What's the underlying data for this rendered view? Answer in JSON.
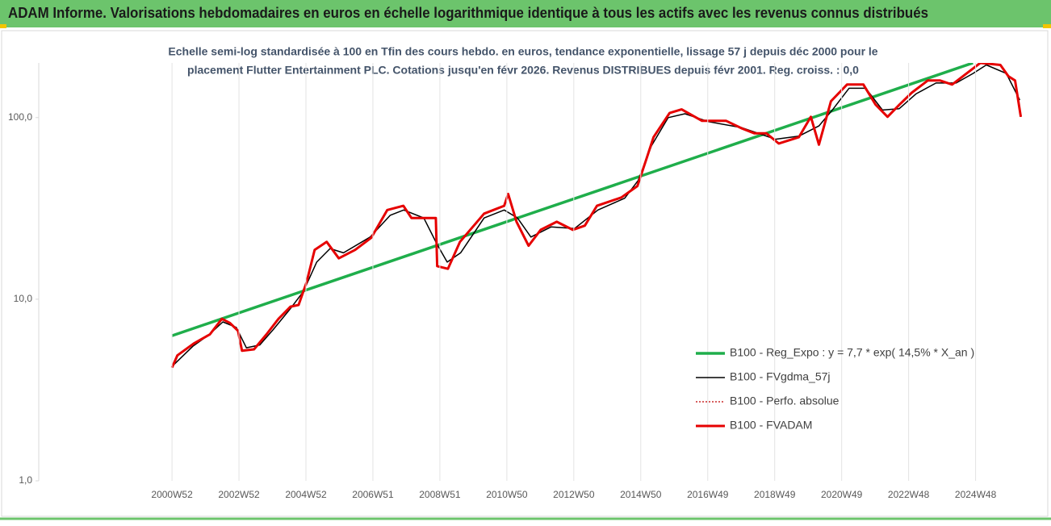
{
  "chart_data": {
    "type": "line",
    "title": "ADAM Informe. Valorisations hebdomadaires en euros en échelle logarithmique identique à tous les actifs avec les revenus connus distribués",
    "subtitle": [
      "Echelle semi-log standardisée à 100 en Tfin des cours hebdo. en euros, tendance exponentielle, lissage 57 j depuis déc 2000 pour le",
      "placement Flutter Entertainment PLC. Cotations jusqu'en févr 2026.  Revenus DISTRIBUES depuis févr 2001. Reg. croiss. : 0,0"
    ],
    "log_scale": true,
    "legend": "right",
    "xlim": [
      1997,
      2026.75
    ],
    "ylim": [
      1,
      200
    ],
    "yticks": [
      {
        "value": 1,
        "label": "1,0"
      },
      {
        "value": 10,
        "label": "10,0"
      },
      {
        "value": 100,
        "label": "100,0"
      }
    ],
    "xticks": [
      {
        "value": 2000.98,
        "label": "2000W52"
      },
      {
        "value": 2002.98,
        "label": "2002W52"
      },
      {
        "value": 2004.98,
        "label": "2004W52"
      },
      {
        "value": 2006.98,
        "label": "2006W51"
      },
      {
        "value": 2008.98,
        "label": "2008W51"
      },
      {
        "value": 2010.98,
        "label": "2010W50"
      },
      {
        "value": 2012.98,
        "label": "2012W50"
      },
      {
        "value": 2014.98,
        "label": "2014W50"
      },
      {
        "value": 2016.98,
        "label": "2016W49"
      },
      {
        "value": 2018.98,
        "label": "2018W49"
      },
      {
        "value": 2020.98,
        "label": "2020W49"
      },
      {
        "value": 2022.98,
        "label": "2022W48"
      },
      {
        "value": 2024.98,
        "label": "2024W48"
      }
    ],
    "series": [
      {
        "name": "B100 - Reg_Expo : y = 7,7 * exp( 14,5% *  X_an )",
        "color": "#1fae4b",
        "width": 3.5,
        "line_style": "solid",
        "x": [
          2000.98,
          2024.9
        ],
        "values": [
          6.3,
          200
        ]
      },
      {
        "name": "B100 - FVgdma_57j",
        "color": "#000000",
        "width": 1.5,
        "line_style": "solid",
        "x": [
          2001.0,
          2001.6,
          2002.1,
          2002.5,
          2002.9,
          2003.2,
          2003.6,
          2004.0,
          2004.5,
          2004.9,
          2005.3,
          2005.7,
          2006.1,
          2006.9,
          2007.5,
          2007.9,
          2008.5,
          2008.9,
          2009.2,
          2009.6,
          2010.3,
          2010.9,
          2011.3,
          2011.7,
          2012.3,
          2013.0,
          2013.7,
          2014.5,
          2014.9,
          2015.3,
          2015.8,
          2016.3,
          2017.0,
          2018.0,
          2019.0,
          2019.7,
          2020.3,
          2020.7,
          2021.2,
          2021.7,
          2022.2,
          2022.7,
          2023.2,
          2023.8,
          2024.4,
          2024.9,
          2025.3,
          2025.9,
          2026.3
        ],
        "values": [
          4.3,
          5.5,
          6.4,
          7.5,
          7.0,
          5.4,
          5.6,
          6.8,
          8.8,
          11,
          16,
          19,
          18,
          22,
          29,
          31,
          28,
          20,
          16,
          18,
          28,
          31,
          28,
          22,
          25,
          24.5,
          31,
          36,
          45,
          70,
          100,
          105,
          95,
          88,
          76,
          79,
          90,
          110,
          145,
          145,
          110,
          112,
          135,
          155,
          155,
          175,
          195,
          175,
          125
        ]
      },
      {
        "name": "B100 - Perfo. absolue",
        "color": "#c00000",
        "width": 1.2,
        "line_style": "dotted",
        "x": [
          2000.98,
          2001.14,
          2001.63,
          2002.11,
          2002.47,
          2002.71,
          2002.95,
          2003.07,
          2003.43,
          2003.8,
          2004.16,
          2004.52,
          2004.76,
          2005.0,
          2005.24,
          2005.6,
          2005.96,
          2006.45,
          2006.93,
          2007.41,
          2007.89,
          2008.13,
          2008.86,
          2008.9,
          2009.22,
          2009.58,
          2010.3,
          2010.9,
          2011.02,
          2011.27,
          2011.63,
          2011.99,
          2012.47,
          2012.95,
          2013.31,
          2013.67,
          2014.4,
          2014.88,
          2015.12,
          2015.36,
          2015.84,
          2016.2,
          2016.81,
          2017.53,
          2018.01,
          2018.37,
          2018.73,
          2019.1,
          2019.7,
          2020.06,
          2020.3,
          2020.66,
          2021.14,
          2021.63,
          2021.99,
          2022.35,
          2022.71,
          2023.07,
          2023.55,
          2023.92,
          2024.28,
          2024.76,
          2025.12,
          2025.72,
          2025.96,
          2026.16,
          2026.33
        ],
        "values": [
          4.2,
          4.9,
          5.7,
          6.4,
          7.8,
          7.4,
          6.7,
          5.2,
          5.3,
          6.4,
          7.8,
          9.1,
          9.3,
          12.4,
          18.7,
          20.7,
          16.8,
          18.7,
          21.8,
          31,
          32.7,
          28,
          28,
          15.2,
          14.7,
          20.7,
          29.6,
          32.7,
          38,
          26.7,
          19.7,
          24.1,
          26.7,
          24.1,
          25.4,
          32.7,
          36.3,
          42,
          57,
          78,
          106,
          111,
          96,
          96,
          87,
          82,
          82,
          72,
          78,
          101,
          71,
          123,
          152,
          152,
          118,
          101,
          118,
          137,
          160,
          160,
          152,
          178,
          200,
          195,
          169,
          160,
          101
        ]
      },
      {
        "name": "B100 - FVADAM",
        "color": "#e60000",
        "width": 3,
        "line_style": "solid",
        "x": [
          2000.98,
          2001.14,
          2001.63,
          2002.11,
          2002.47,
          2002.71,
          2002.95,
          2003.07,
          2003.43,
          2003.8,
          2004.16,
          2004.52,
          2004.76,
          2005.0,
          2005.24,
          2005.6,
          2005.96,
          2006.45,
          2006.93,
          2007.41,
          2007.89,
          2008.13,
          2008.86,
          2008.9,
          2009.22,
          2009.58,
          2010.3,
          2010.9,
          2011.02,
          2011.27,
          2011.63,
          2011.99,
          2012.47,
          2012.95,
          2013.31,
          2013.67,
          2014.4,
          2014.88,
          2015.12,
          2015.36,
          2015.84,
          2016.2,
          2016.81,
          2017.53,
          2018.01,
          2018.37,
          2018.73,
          2019.1,
          2019.7,
          2020.06,
          2020.3,
          2020.66,
          2021.14,
          2021.63,
          2021.99,
          2022.35,
          2022.71,
          2023.07,
          2023.55,
          2023.92,
          2024.28,
          2024.76,
          2025.12,
          2025.72,
          2025.96,
          2026.16,
          2026.33
        ],
        "values": [
          4.2,
          4.9,
          5.7,
          6.4,
          7.8,
          7.4,
          6.7,
          5.2,
          5.3,
          6.4,
          7.8,
          9.1,
          9.3,
          12.4,
          18.7,
          20.7,
          16.8,
          18.7,
          21.8,
          31,
          32.7,
          28,
          28,
          15.2,
          14.7,
          20.7,
          29.6,
          32.7,
          38,
          26.7,
          19.7,
          24.1,
          26.7,
          24.1,
          25.4,
          32.7,
          36.3,
          42,
          57,
          78,
          106,
          111,
          96,
          96,
          87,
          82,
          82,
          72,
          78,
          101,
          71,
          123,
          152,
          152,
          118,
          101,
          118,
          137,
          160,
          160,
          152,
          178,
          200,
          195,
          169,
          160,
          101
        ]
      }
    ]
  }
}
